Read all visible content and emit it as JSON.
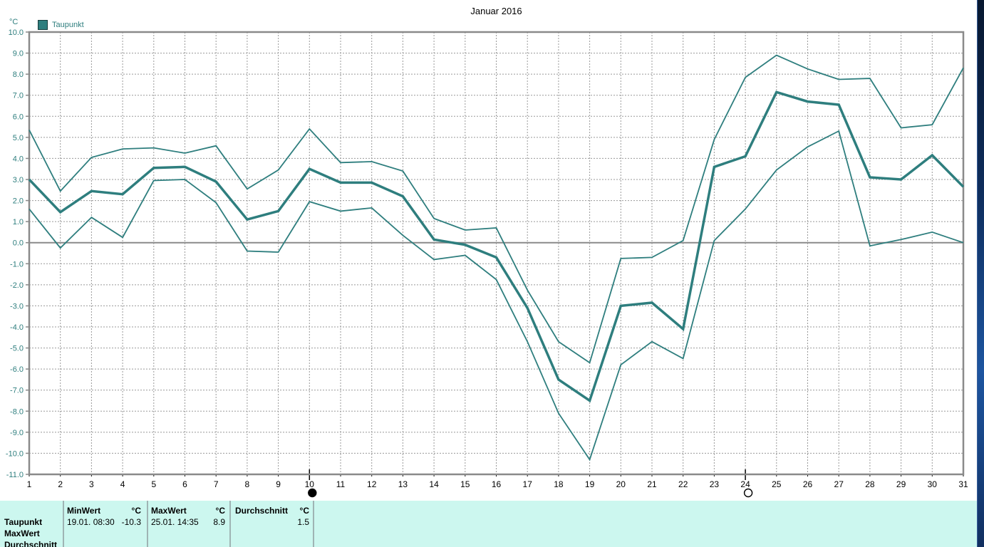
{
  "title": "Januar 2016",
  "legend": {
    "label": "Taupunkt"
  },
  "axis": {
    "unit": "°C"
  },
  "chart_data": {
    "type": "line",
    "title": "Januar 2016",
    "ylabel": "°C",
    "ylim": [
      -11.0,
      10.0
    ],
    "y_tick_step": 1.0,
    "grid": "dashed",
    "zero_line": true,
    "legend_position": "top-left",
    "categories": [
      1,
      2,
      3,
      4,
      5,
      6,
      7,
      8,
      9,
      10,
      11,
      12,
      13,
      14,
      15,
      16,
      17,
      18,
      19,
      20,
      21,
      22,
      23,
      24,
      25,
      26,
      27,
      28,
      29,
      30,
      31
    ],
    "series": [
      {
        "name": "max",
        "style": "thin",
        "values": [
          5.35,
          2.45,
          4.05,
          4.45,
          4.5,
          4.25,
          4.6,
          2.55,
          3.45,
          5.4,
          3.8,
          3.85,
          3.4,
          1.15,
          0.6,
          0.7,
          -2.25,
          -4.7,
          -5.7,
          -0.75,
          -0.7,
          0.1,
          4.9,
          7.85,
          8.9,
          8.25,
          7.75,
          7.8,
          5.45,
          5.6,
          8.3
        ]
      },
      {
        "name": "min",
        "style": "thin",
        "values": [
          1.6,
          -0.25,
          1.2,
          0.25,
          2.95,
          3.0,
          1.9,
          -0.4,
          -0.45,
          1.95,
          1.5,
          1.65,
          0.35,
          -0.8,
          -0.6,
          -1.75,
          -4.7,
          -8.1,
          -10.3,
          -5.8,
          -4.7,
          -5.5,
          0.1,
          1.6,
          3.45,
          4.55,
          5.3,
          -0.15,
          0.15,
          0.5,
          0.0
        ]
      },
      {
        "name": "avg",
        "style": "thick",
        "values": [
          3.0,
          1.45,
          2.45,
          2.3,
          3.55,
          3.6,
          2.9,
          1.1,
          1.5,
          3.5,
          2.85,
          2.85,
          2.2,
          0.15,
          -0.1,
          -0.7,
          -3.1,
          -6.5,
          -7.5,
          -3.0,
          -2.85,
          -4.1,
          3.6,
          4.1,
          7.15,
          6.7,
          6.55,
          3.1,
          3.0,
          4.15,
          2.65
        ]
      }
    ],
    "markers": [
      {
        "day": 10,
        "symbol": "new-moon-filled-circle"
      },
      {
        "day": 24,
        "symbol": "full-moon-open-circle"
      }
    ]
  },
  "table": {
    "row_labels": [
      "Taupunkt",
      "MaxWert",
      "Durchschnitt"
    ],
    "columns": [
      {
        "header": "MinWert",
        "unit": "°C",
        "datetime": "19.01.  08:30",
        "value": "-10.3"
      },
      {
        "header": "MaxWert",
        "unit": "°C",
        "datetime": "25.01.  14:35",
        "value": "8.9"
      },
      {
        "header": "Durchschnitt",
        "unit": "°C",
        "datetime": "",
        "value": "1.5"
      }
    ]
  },
  "colors": {
    "line": "#2e7e7e",
    "axis_label": "#2e7e7e",
    "frame": "#8a8a8a",
    "grid": "#999999",
    "x_label": "#000000",
    "table_bg": "#ccf7ef",
    "desktop_strip": [
      "#081830",
      "#0e2d5c",
      "#1d55a0",
      "#112f60"
    ]
  }
}
